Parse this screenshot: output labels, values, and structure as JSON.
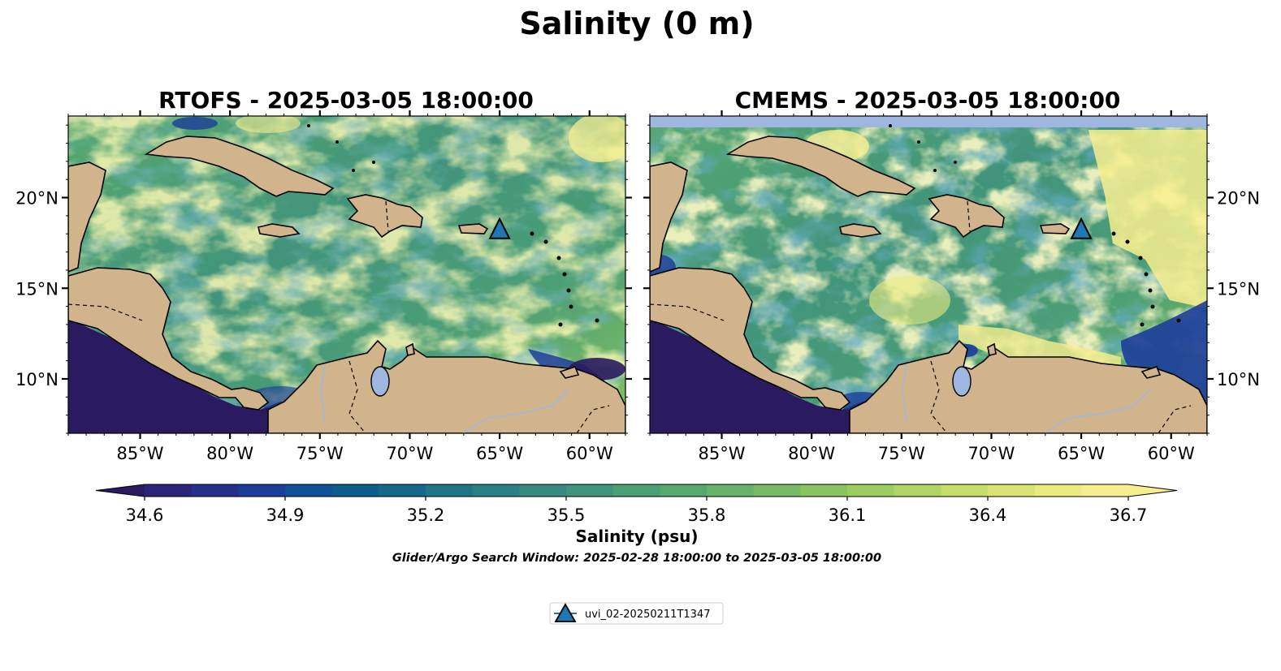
{
  "figure": {
    "suptitle": "Salinity (0 m)",
    "colorbar_label": "Salinity (psu)",
    "search_window": "Glider/Argo Search Window: 2025-02-28 18:00:00 to 2025-03-05 18:00:00"
  },
  "colors": {
    "land": "#d2b48c",
    "lakes": "#9fb6e0",
    "coastline": "#000000",
    "marker": "#1f77b4",
    "colormap": [
      "#2a1a60",
      "#2b2478",
      "#272f8e",
      "#1c3d9a",
      "#114f96",
      "#0e5d8f",
      "#14698a",
      "#1f7486",
      "#2a7f84",
      "#368a80",
      "#41947b",
      "#4c9e75",
      "#57a86f",
      "#66b26a",
      "#77bb64",
      "#89c460",
      "#9dcd5f",
      "#b1d562",
      "#c6dd69",
      "#d9e473",
      "#ebec80",
      "#f7ef8e"
    ]
  },
  "legend": {
    "label": "uvi_02-20250211T1347"
  },
  "chart_data": [
    {
      "type": "heatmap",
      "title": "RTOFS - 2025-03-05 18:00:00",
      "variable": "Salinity",
      "units": "psu",
      "depth_m": 0,
      "xlim": [
        -89,
        -58
      ],
      "ylim": [
        7,
        24.5
      ],
      "x_ticks": [
        -85,
        -80,
        -75,
        -70,
        -65,
        -60
      ],
      "x_tick_labels": [
        "85°W",
        "80°W",
        "75°W",
        "70°W",
        "65°W",
        "60°W"
      ],
      "y_ticks": [
        10,
        15,
        20
      ],
      "y_tick_labels": [
        "10°N",
        "15°N",
        "20°N"
      ],
      "y_tick_side": "left",
      "clim": [
        34.6,
        36.7
      ],
      "markers": [
        {
          "name": "uvi_02-20250211T1347",
          "lon": -65.0,
          "lat": 18.2,
          "symbol": "triangle"
        }
      ]
    },
    {
      "type": "heatmap",
      "title": "CMEMS - 2025-03-05 18:00:00",
      "variable": "Salinity",
      "units": "psu",
      "depth_m": 0,
      "xlim": [
        -89,
        -58
      ],
      "ylim": [
        7,
        24.5
      ],
      "x_ticks": [
        -85,
        -80,
        -75,
        -70,
        -65,
        -60
      ],
      "x_tick_labels": [
        "85°W",
        "80°W",
        "75°W",
        "70°W",
        "65°W",
        "60°W"
      ],
      "y_ticks": [
        10,
        15,
        20
      ],
      "y_tick_labels": [
        "10°N",
        "15°N",
        "20°N"
      ],
      "y_tick_side": "right",
      "clim": [
        34.6,
        36.7
      ],
      "markers": [
        {
          "name": "uvi_02-20250211T1347",
          "lon": -65.0,
          "lat": 18.2,
          "symbol": "triangle"
        }
      ]
    }
  ],
  "colorbar": {
    "ticks": [
      34.6,
      34.9,
      35.2,
      35.5,
      35.8,
      36.1,
      36.4,
      36.7
    ],
    "tick_labels": [
      "34.6",
      "34.9",
      "35.2",
      "35.5",
      "35.8",
      "36.1",
      "36.4",
      "36.7"
    ],
    "extend": "both"
  }
}
